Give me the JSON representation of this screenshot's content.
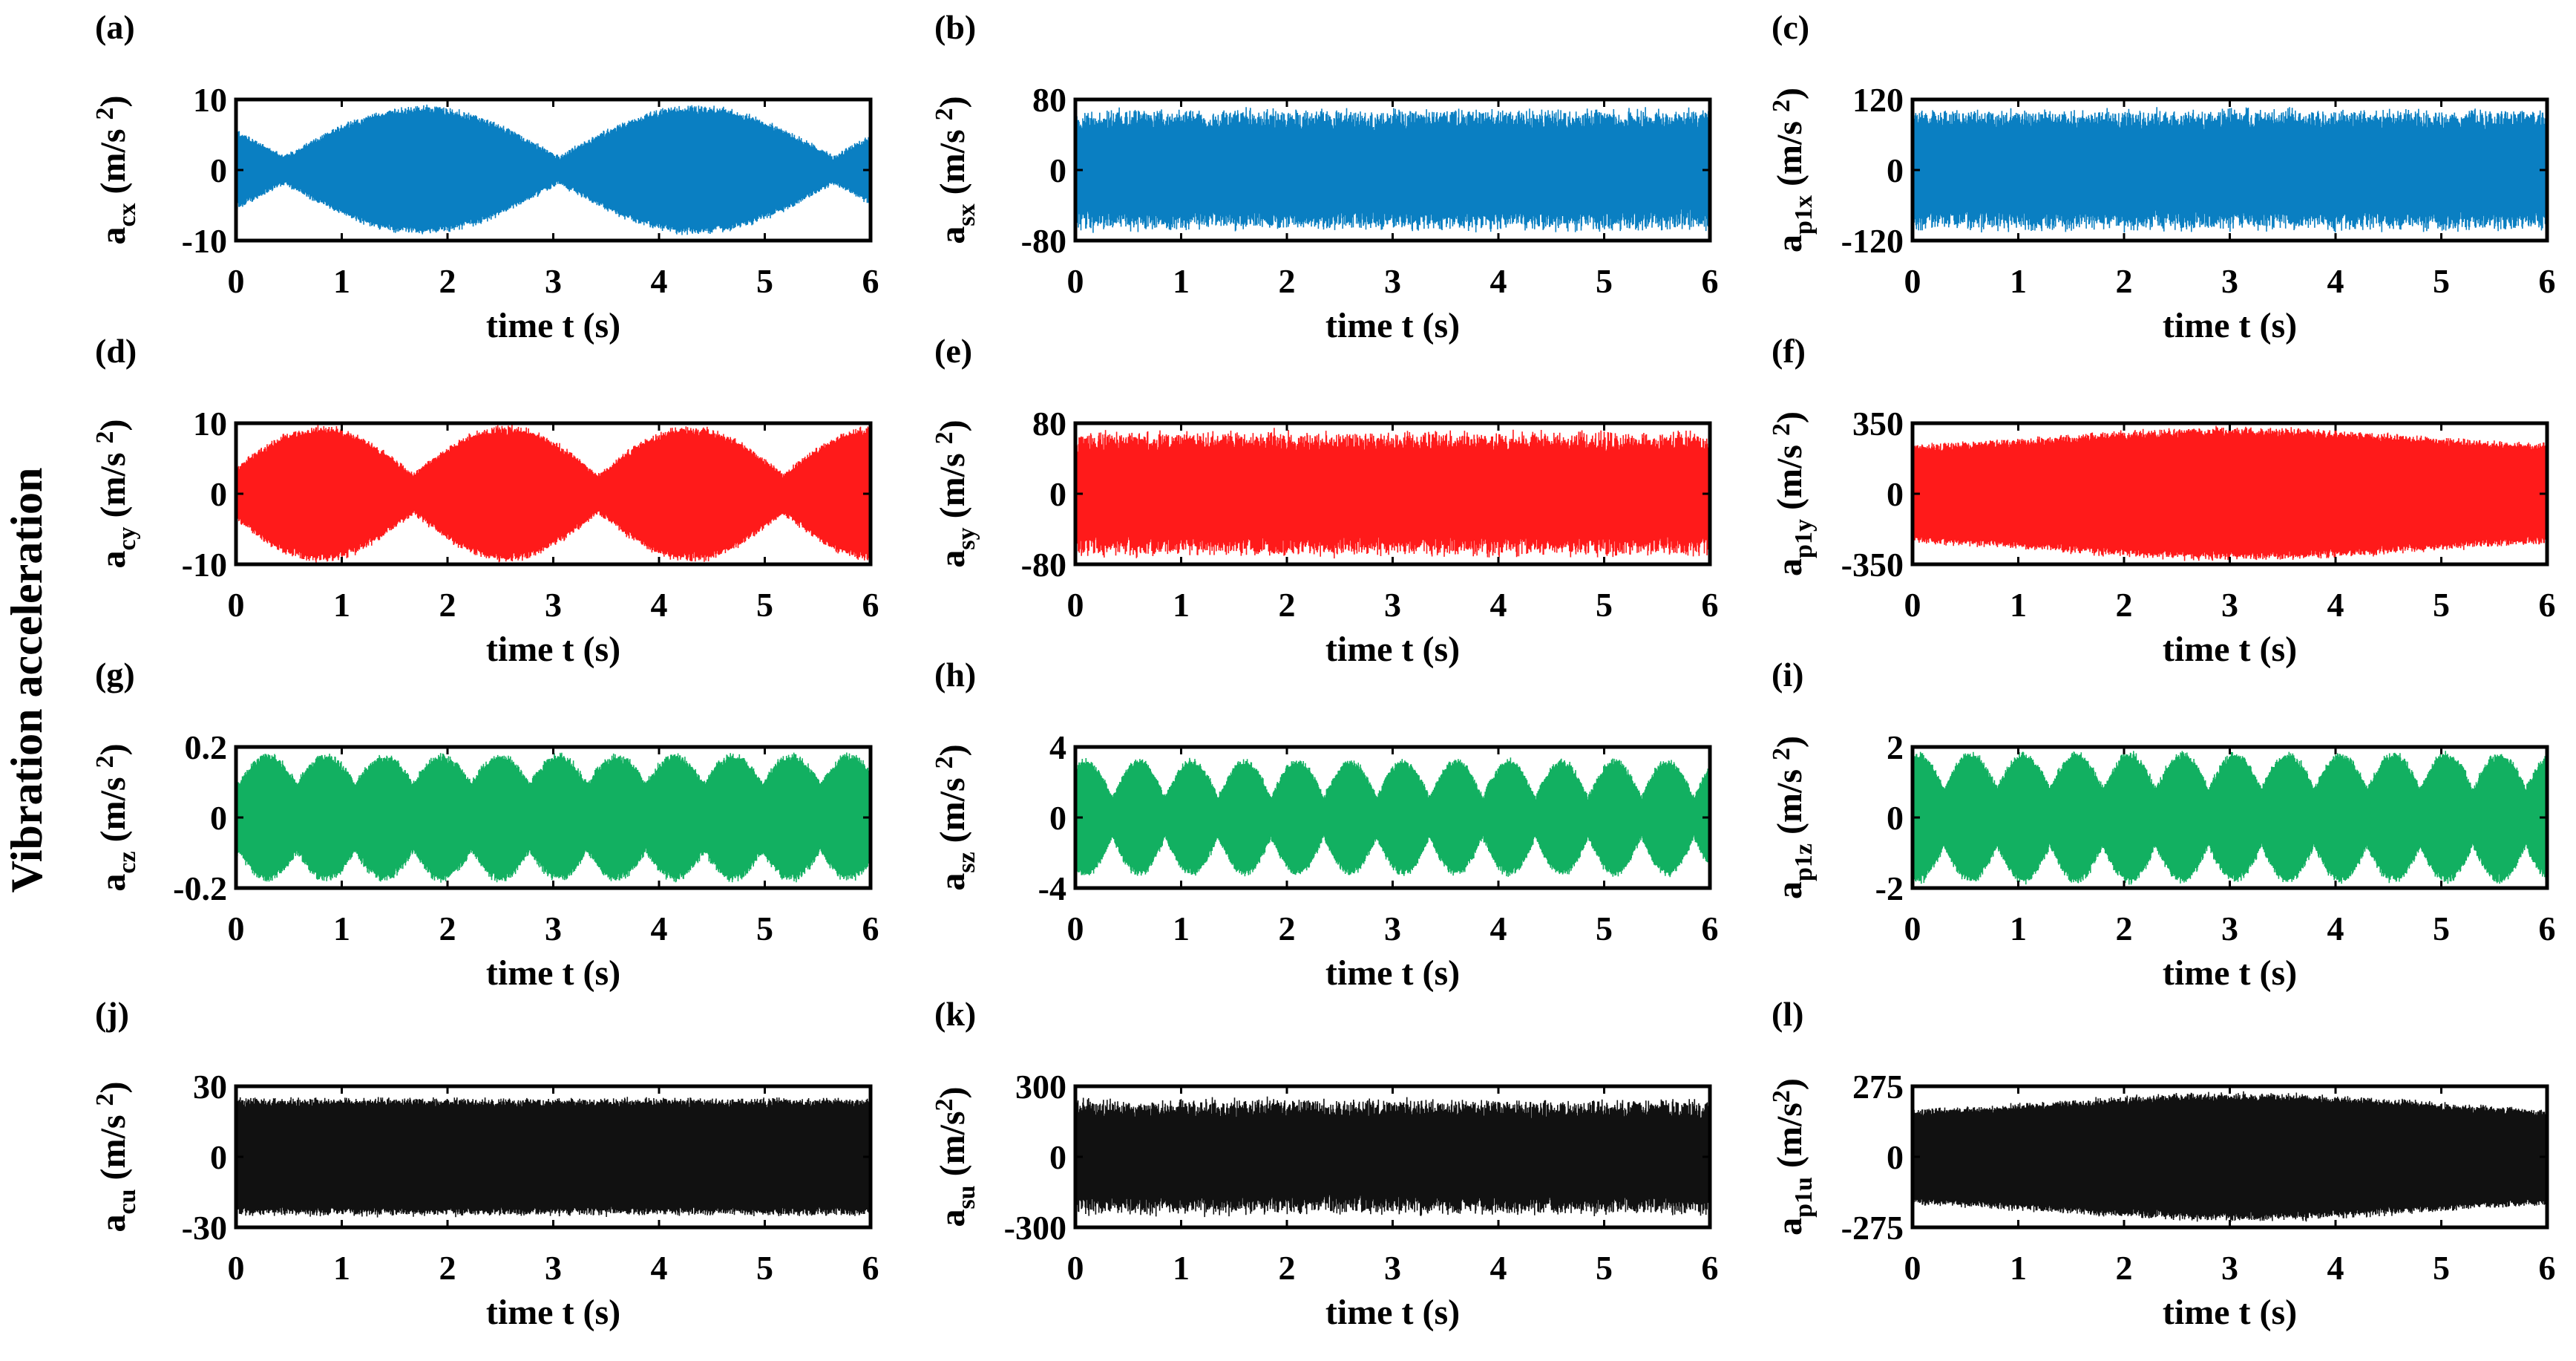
{
  "figure": {
    "common_ylabel": "Vibration acceleration",
    "colors": {
      "x": "#0a7fc2",
      "y": "#ff1a1a",
      "z": "#12b061",
      "u": "#111111",
      "axis": "#000000"
    }
  },
  "chart_data": [
    {
      "panel": "(a)",
      "type": "line",
      "component": "x",
      "ylabel_base": "a",
      "ylabel_sub": "cx",
      "ylabel_unit": " (m/s ",
      "ylabel_sup": "2",
      "ylabel_close": ")",
      "xlabel": "time t (s)",
      "xlim": [
        0,
        6
      ],
      "ylim": [
        -10,
        10
      ],
      "xticks": [
        "0",
        "1",
        "2",
        "3",
        "4",
        "5",
        "6"
      ],
      "yticks": [
        "-10",
        "0",
        "10"
      ],
      "peak": 9,
      "envelope": "beat",
      "beat_period": 2.6,
      "beat_phase": 1.75,
      "beat_depth": 0.8,
      "title_pos": "top-left"
    },
    {
      "panel": "(b)",
      "type": "line",
      "component": "x",
      "ylabel_base": "a",
      "ylabel_sub": "sx",
      "ylabel_unit": " (m/s ",
      "ylabel_sup": "2",
      "ylabel_close": ")",
      "xlabel": "time t (s)",
      "xlim": [
        0,
        6
      ],
      "ylim": [
        -80,
        80
      ],
      "xticks": [
        "0",
        "1",
        "2",
        "3",
        "4",
        "5",
        "6"
      ],
      "yticks": [
        "-80",
        "0",
        "80"
      ],
      "peak": 70,
      "envelope": "noise"
    },
    {
      "panel": "(c)",
      "type": "line",
      "component": "x",
      "ylabel_base": "a",
      "ylabel_sub": "p1x",
      "ylabel_unit": " (m/s ",
      "ylabel_sup": "2",
      "ylabel_close": ")",
      "xlabel": "time t (s)",
      "xlim": [
        0,
        6
      ],
      "ylim": [
        -120,
        120
      ],
      "xticks": [
        "0",
        "1",
        "2",
        "3",
        "4",
        "5",
        "6"
      ],
      "yticks": [
        "-120",
        "0",
        "120"
      ],
      "peak": 105,
      "envelope": "noise"
    },
    {
      "panel": "(d)",
      "type": "line",
      "component": "y",
      "ylabel_base": "a",
      "ylabel_sub": "cy",
      "ylabel_unit": " (m/s ",
      "ylabel_sup": "2",
      "ylabel_close": ")",
      "xlabel": "time t (s)",
      "xlim": [
        0,
        6
      ],
      "ylim": [
        -10,
        10
      ],
      "xticks": [
        "0",
        "1",
        "2",
        "3",
        "4",
        "5",
        "6"
      ],
      "yticks": [
        "-10",
        "0",
        "10"
      ],
      "peak": 9.5,
      "envelope": "beat",
      "beat_period": 1.75,
      "beat_phase": 2.55,
      "beat_depth": 0.72
    },
    {
      "panel": "(e)",
      "type": "line",
      "component": "y",
      "ylabel_base": "a",
      "ylabel_sub": "sy",
      "ylabel_unit": " (m/s ",
      "ylabel_sup": "2",
      "ylabel_close": ")",
      "xlabel": "time t (s)",
      "xlim": [
        0,
        6
      ],
      "ylim": [
        -80,
        80
      ],
      "xticks": [
        "0",
        "1",
        "2",
        "3",
        "4",
        "5",
        "6"
      ],
      "yticks": [
        "-80",
        "0",
        "80"
      ],
      "peak": 72,
      "envelope": "noise"
    },
    {
      "panel": "(f)",
      "type": "line",
      "component": "y",
      "ylabel_base": "a",
      "ylabel_sub": "p1y",
      "ylabel_unit": " (m/s ",
      "ylabel_sup": "2",
      "ylabel_close": ")",
      "xlabel": "time t (s)",
      "xlim": [
        0,
        6
      ],
      "ylim": [
        -350,
        350
      ],
      "xticks": [
        "0",
        "1",
        "2",
        "3",
        "4",
        "5",
        "6"
      ],
      "yticks": [
        "-350",
        "0",
        "350"
      ],
      "peak": 330,
      "envelope": "growth"
    },
    {
      "panel": "(g)",
      "type": "line",
      "component": "z",
      "ylabel_base": "a",
      "ylabel_sub": "cz",
      "ylabel_unit": " (m/s ",
      "ylabel_sup": "2",
      "ylabel_close": ")",
      "xlabel": "time t (s)",
      "xlim": [
        0,
        6
      ],
      "ylim": [
        -0.2,
        0.2
      ],
      "xticks": [
        "0",
        "1",
        "2",
        "3",
        "4",
        "5",
        "6"
      ],
      "yticks": [
        "-0.2",
        "0",
        "0.2"
      ],
      "peak": 0.18,
      "envelope": "beat",
      "beat_period": 0.55,
      "beat_phase": 0.3,
      "beat_depth": 0.45
    },
    {
      "panel": "(h)",
      "type": "line",
      "component": "z",
      "ylabel_base": "a",
      "ylabel_sub": "sz",
      "ylabel_unit": " (m/s ",
      "ylabel_sup": "2",
      "ylabel_close": ")",
      "xlabel": "time t (s)",
      "xlim": [
        0,
        6
      ],
      "ylim": [
        -4,
        4
      ],
      "xticks": [
        "0",
        "1",
        "2",
        "3",
        "4",
        "5",
        "6"
      ],
      "yticks": [
        "-4",
        "0",
        "4"
      ],
      "peak": 3.3,
      "envelope": "beat",
      "beat_period": 0.5,
      "beat_phase": 0.6,
      "beat_depth": 0.65
    },
    {
      "panel": "(i)",
      "type": "line",
      "component": "z",
      "ylabel_base": "a",
      "ylabel_sub": "p1z",
      "ylabel_unit": " (m/s ",
      "ylabel_sup": "2",
      "ylabel_close": ")",
      "xlabel": "time t (s)",
      "xlim": [
        0,
        6
      ],
      "ylim": [
        -2,
        2
      ],
      "xticks": [
        "0",
        "1",
        "2",
        "3",
        "4",
        "5",
        "6"
      ],
      "yticks": [
        "-2",
        "0",
        "2"
      ],
      "peak": 1.85,
      "envelope": "beat",
      "beat_period": 0.5,
      "beat_phase": 0.55,
      "beat_depth": 0.55
    },
    {
      "panel": "(j)",
      "type": "line",
      "component": "u",
      "ylabel_base": "a",
      "ylabel_sub": "cu",
      "ylabel_unit": " (m/s ",
      "ylabel_sup": "2",
      "ylabel_close": ")",
      "xlabel": "time t (s)",
      "xlim": [
        0,
        6
      ],
      "ylim": [
        -30,
        30
      ],
      "xticks": [
        "0",
        "1",
        "2",
        "3",
        "4",
        "5",
        "6"
      ],
      "yticks": [
        "-30",
        "0",
        "30"
      ],
      "peak": 25,
      "envelope": "flat"
    },
    {
      "panel": "(k)",
      "type": "line",
      "component": "u",
      "ylabel_base": "a",
      "ylabel_sub": "su",
      "ylabel_unit": " (m/s",
      "ylabel_sup": "2",
      "ylabel_close": ")",
      "xlabel": "time t (s)",
      "xlim": [
        0,
        6
      ],
      "ylim": [
        -300,
        300
      ],
      "xticks": [
        "0",
        "1",
        "2",
        "3",
        "4",
        "5",
        "6"
      ],
      "yticks": [
        "-300",
        "0",
        "300"
      ],
      "peak": 250,
      "envelope": "noise"
    },
    {
      "panel": "(l)",
      "type": "line",
      "component": "u",
      "ylabel_base": "a",
      "ylabel_sub": "p1u",
      "ylabel_unit": " (m/s",
      "ylabel_sup": "2",
      "ylabel_close": ")",
      "xlabel": "time t (s)",
      "xlim": [
        0,
        6
      ],
      "ylim": [
        -275,
        275
      ],
      "xticks": [
        "0",
        "1",
        "2",
        "3",
        "4",
        "5",
        "6"
      ],
      "yticks": [
        "-275",
        "0",
        "275"
      ],
      "peak": 250,
      "envelope": "growth"
    }
  ]
}
